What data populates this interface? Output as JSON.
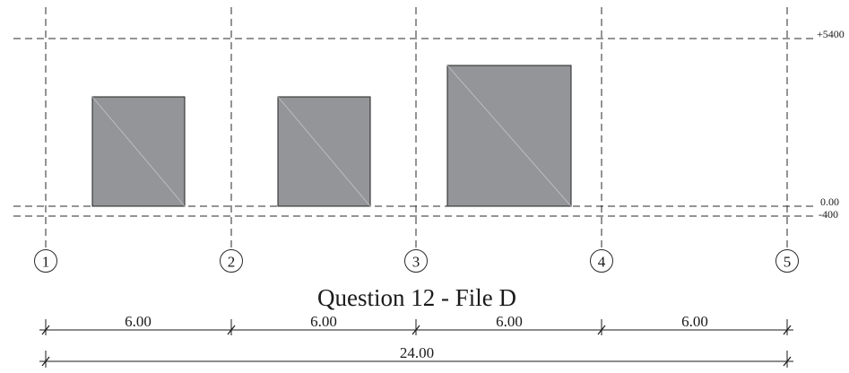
{
  "grid": {
    "axes": [
      {
        "label": "1"
      },
      {
        "label": "2"
      },
      {
        "label": "3"
      },
      {
        "label": "4"
      },
      {
        "label": "5"
      }
    ],
    "levels": [
      {
        "label": "+5400"
      },
      {
        "label": "0.00"
      },
      {
        "label": "-400"
      }
    ]
  },
  "title": "Question 12 - File D",
  "dimensions": {
    "spans": [
      "6.00",
      "6.00",
      "6.00",
      "6.00"
    ],
    "total": "24.00"
  },
  "colors": {
    "element_fill": "#939598",
    "line": "#2a2a2a"
  }
}
